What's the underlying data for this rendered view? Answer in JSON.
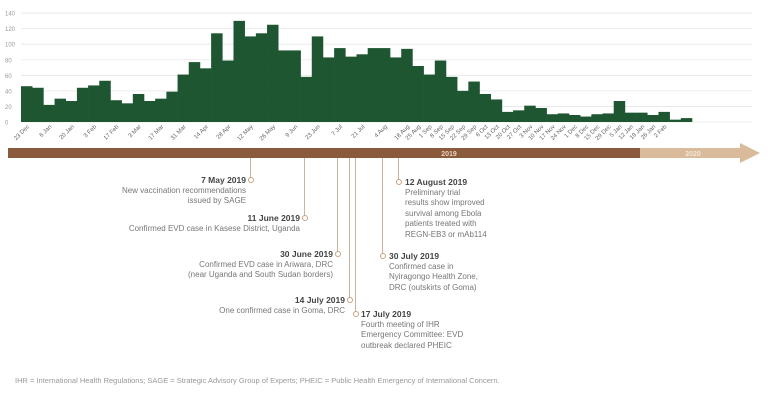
{
  "chart_data": {
    "type": "bar",
    "title": "",
    "xlabel": "",
    "ylabel": "",
    "ylim": [
      0,
      140
    ],
    "yticks": [
      "0",
      "20",
      "40",
      "60",
      "80",
      "100",
      "120",
      "140"
    ],
    "grid": true,
    "values": [
      46,
      44,
      22,
      30,
      27,
      44,
      47,
      53,
      28,
      24,
      36,
      27,
      30,
      39,
      61,
      77,
      69,
      114,
      79,
      130,
      110,
      114,
      125,
      92,
      92,
      58,
      110,
      83,
      95,
      84,
      87,
      95,
      95,
      83,
      94,
      72,
      61,
      79,
      58,
      40,
      52,
      36,
      29,
      13,
      15,
      21,
      18,
      10,
      11,
      9,
      7,
      10,
      11,
      27,
      12,
      12,
      9,
      13,
      3,
      5
    ],
    "x_labels": [
      {
        "label": "23 Dec",
        "i": 0
      },
      {
        "label": "6 Jan",
        "i": 2
      },
      {
        "label": "20 Jan",
        "i": 4
      },
      {
        "label": "3 Feb",
        "i": 6
      },
      {
        "label": "17 Feb",
        "i": 8
      },
      {
        "label": "3 Mar",
        "i": 10
      },
      {
        "label": "17 Mar",
        "i": 12
      },
      {
        "label": "31 Mar",
        "i": 14
      },
      {
        "label": "14 Apr",
        "i": 16
      },
      {
        "label": "28 Apr",
        "i": 18
      },
      {
        "label": "12 May",
        "i": 20
      },
      {
        "label": "26 May",
        "i": 22
      },
      {
        "label": "9 Jun",
        "i": 24
      },
      {
        "label": "23 Jun",
        "i": 26
      },
      {
        "label": "7 Jul",
        "i": 28
      },
      {
        "label": "21 Jul",
        "i": 30
      },
      {
        "label": "4 Aug",
        "i": 32
      },
      {
        "label": "18 Aug",
        "i": 34
      },
      {
        "label": "25 Aug",
        "i": 35
      },
      {
        "label": "1 Sep",
        "i": 36
      },
      {
        "label": "8 Sep",
        "i": 37
      },
      {
        "label": "15 Sep",
        "i": 38
      },
      {
        "label": "22 Sep",
        "i": 39
      },
      {
        "label": "29 Sep",
        "i": 40
      },
      {
        "label": "6 Oct",
        "i": 41
      },
      {
        "label": "13 Oct",
        "i": 42
      },
      {
        "label": "20 Oct",
        "i": 43
      },
      {
        "label": "27 Oct",
        "i": 44
      },
      {
        "label": "3 Nov",
        "i": 45
      },
      {
        "label": "10 Nov",
        "i": 46
      },
      {
        "label": "17 Nov",
        "i": 47
      },
      {
        "label": "24 Nov",
        "i": 48
      },
      {
        "label": "1 Dec",
        "i": 49
      },
      {
        "label": "8 Dec",
        "i": 50
      },
      {
        "label": "15 Dec",
        "i": 51
      },
      {
        "label": "29 Dec",
        "i": 52
      },
      {
        "label": "5 Jan",
        "i": 53
      },
      {
        "label": "12 Jan",
        "i": 54
      },
      {
        "label": "19 Jan",
        "i": 55
      },
      {
        "label": "26 Jan",
        "i": 56
      },
      {
        "label": "2 Feb",
        "i": 57
      }
    ],
    "timeline": {
      "year1": "2019",
      "year2": "2020"
    },
    "colors": {
      "bar": "#1e5631",
      "timeline2019": "#8b5a3c",
      "timeline2020": "#d9bb9c",
      "grid": "#e6e6e6"
    }
  },
  "events": [
    {
      "date": "7 May 2019",
      "text": "New vaccination recommendations\nissued by SAGE"
    },
    {
      "date": "11 June 2019",
      "text": "Confirmed EVD case in Kasese District, Uganda"
    },
    {
      "date": "30 June 2019",
      "text": "Confirmed EVD case in Ariwara, DRC\n(near Uganda and South Sudan borders)"
    },
    {
      "date": "14 July 2019",
      "text": "One confirmed case in Goma, DRC"
    },
    {
      "date": "17 July 2019",
      "text": "Fourth meeting of IHR\nEmergency Committee: EVD\noutbreak declared PHEIC"
    },
    {
      "date": "30 July 2019",
      "text": "Confirmed case in\nNyiragongo Health Zone,\nDRC (outskirts of Goma)"
    },
    {
      "date": "12 August 2019",
      "text": "Preliminary trial\nresults show improved\nsurvival among Ebola\npatients treated with\nREGN-EB3 or mAb114"
    }
  ],
  "footer": "IHR = International Health Regulations; SAGE = Strategic Advisory Group of Experts; PHEIC = Public Health Emergency of International Concern."
}
